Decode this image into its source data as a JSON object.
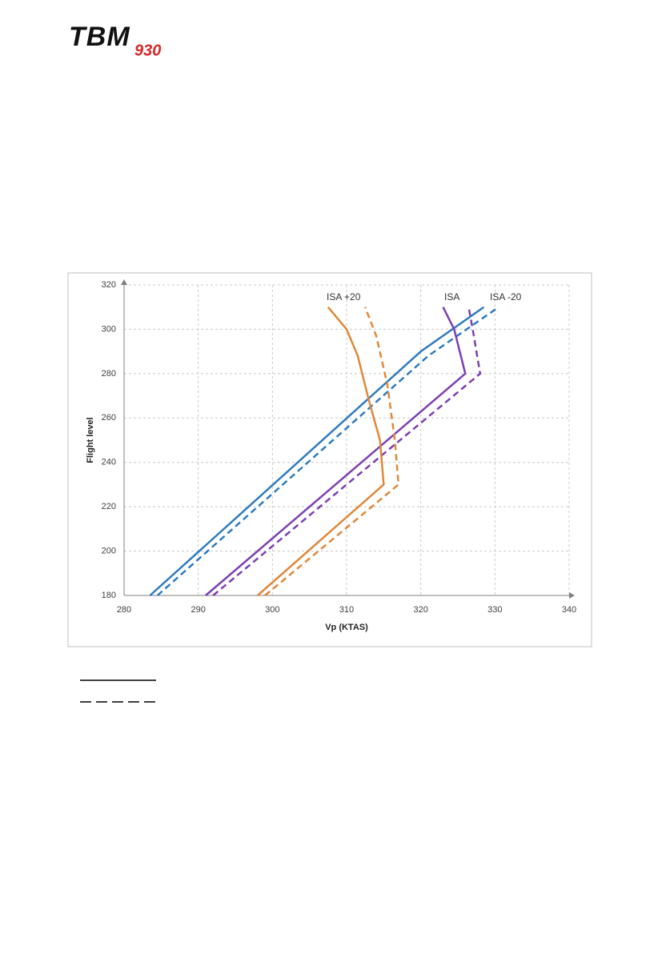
{
  "logo": {
    "brand": "TBM",
    "model": "930"
  },
  "chart_data": {
    "type": "line",
    "x_label": "Vp (KTAS)",
    "y_label": "Flight level",
    "xlim": [
      280,
      340
    ],
    "xticks": [
      280,
      290,
      300,
      310,
      320,
      330,
      340
    ],
    "ylim": [
      180,
      320
    ],
    "yticks": [
      180,
      200,
      220,
      240,
      260,
      280,
      300,
      320
    ],
    "grid": true,
    "annotations": [
      "ISA +20",
      "ISA",
      "ISA -20"
    ],
    "series": [
      {
        "color": "#2e7bbf",
        "dashed": false,
        "x": [
          283.5,
          320,
          328.5
        ],
        "values": [
          180,
          290,
          310
        ]
      },
      {
        "color": "#2e7bbf",
        "dashed": true,
        "x": [
          284.5,
          321,
          330.5
        ],
        "values": [
          180,
          288,
          310
        ]
      },
      {
        "color": "#7d3fb0",
        "dashed": false,
        "x": [
          291,
          326,
          324.5,
          323
        ],
        "values": [
          180,
          280,
          300,
          310
        ]
      },
      {
        "color": "#7d3fb0",
        "dashed": true,
        "x": [
          292,
          328,
          327,
          326.5
        ],
        "values": [
          180,
          280,
          300,
          309
        ]
      },
      {
        "color": "#e0883a",
        "dashed": false,
        "x": [
          298,
          315,
          314.5,
          313,
          311.5,
          310,
          307.5
        ],
        "values": [
          180,
          230,
          250,
          268,
          288,
          300,
          310
        ]
      },
      {
        "color": "#e0883a",
        "dashed": true,
        "x": [
          299,
          317,
          316.5,
          315.5,
          314,
          312.5
        ],
        "values": [
          180,
          230,
          250,
          275,
          297,
          310
        ]
      }
    ]
  }
}
